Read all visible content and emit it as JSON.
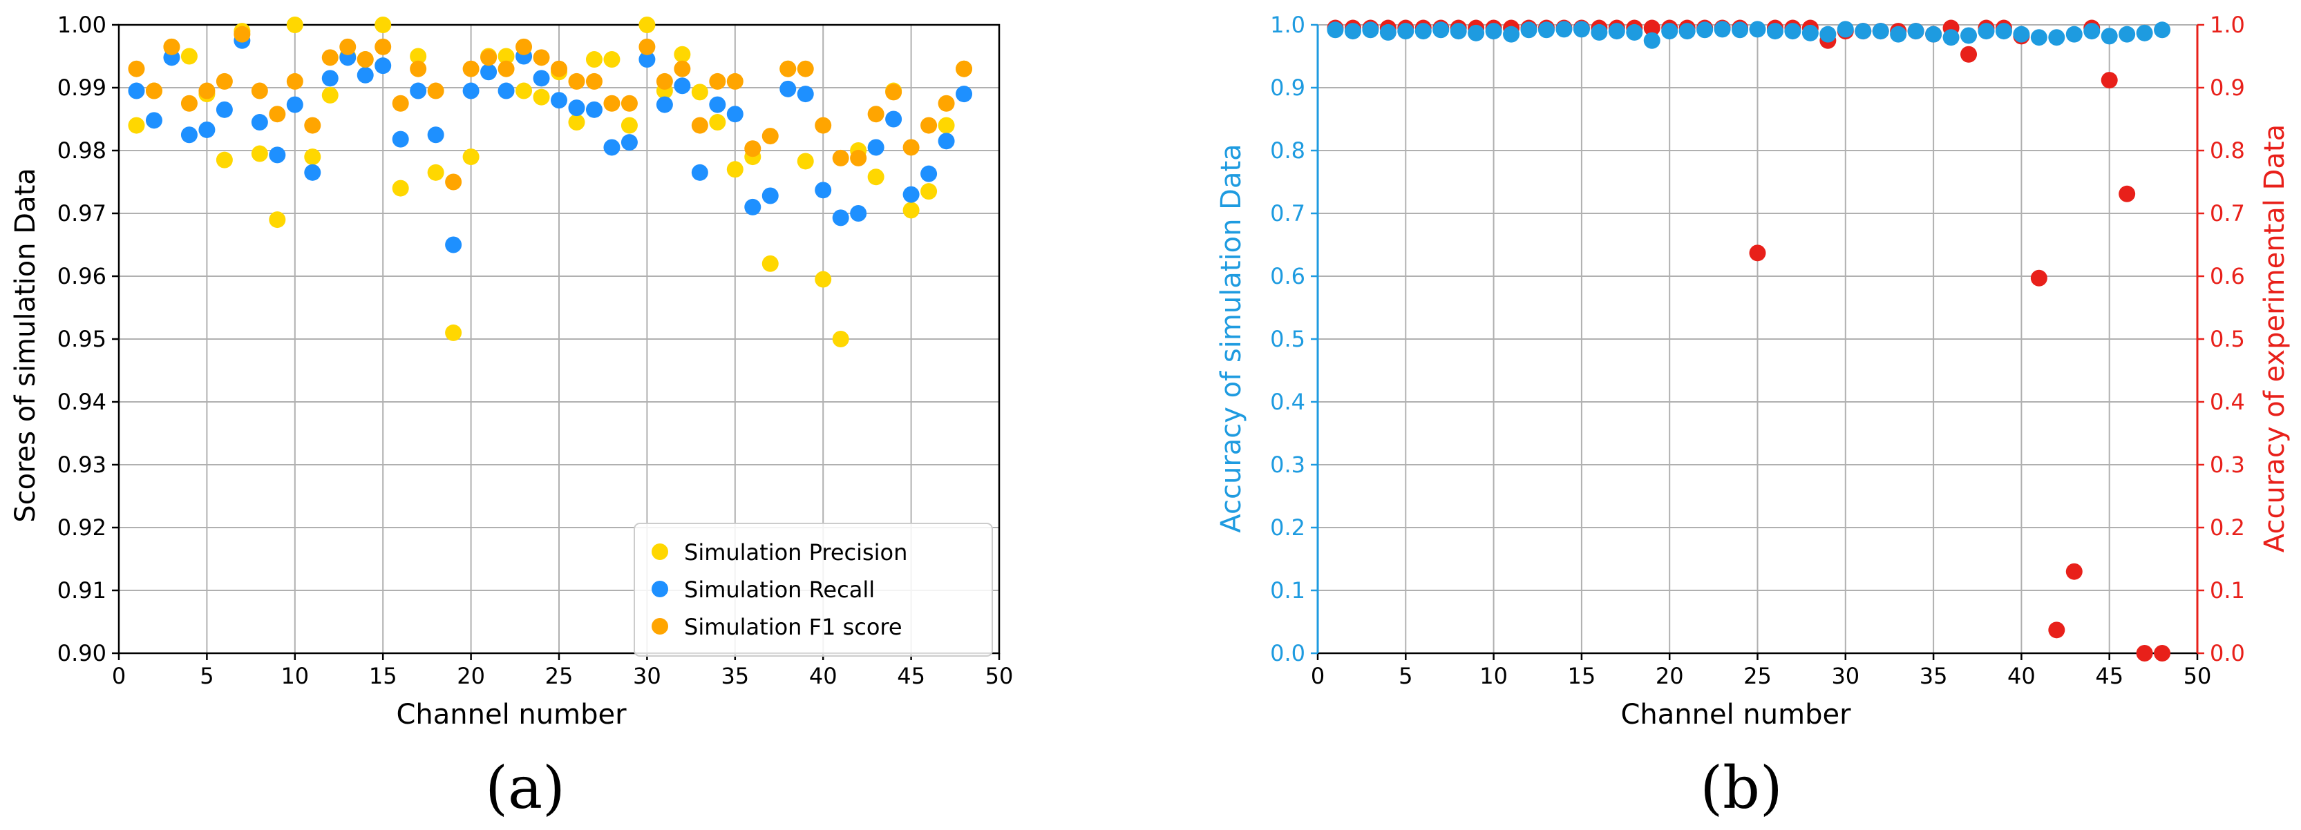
{
  "chart_data": [
    {
      "panel": "a",
      "type": "scatter",
      "caption": "(a)",
      "xlabel": "Channel number",
      "ylabel": "Scores of simulation Data",
      "xlim": [
        0,
        50
      ],
      "ylim": [
        0.9,
        1.0
      ],
      "xticks": [
        0,
        5,
        10,
        15,
        20,
        25,
        30,
        35,
        40,
        45,
        50
      ],
      "yticks": [
        0.9,
        0.91,
        0.92,
        0.93,
        0.94,
        0.95,
        0.96,
        0.97,
        0.98,
        0.99,
        1.0
      ],
      "ytick_labels": [
        "0.90",
        "0.91",
        "0.92",
        "0.93",
        "0.94",
        "0.95",
        "0.96",
        "0.97",
        "0.98",
        "0.99",
        "1.00"
      ],
      "grid": true,
      "legend_position": "lower-right",
      "x": [
        1,
        2,
        3,
        4,
        5,
        6,
        7,
        8,
        9,
        10,
        11,
        12,
        13,
        14,
        15,
        16,
        17,
        18,
        19,
        20,
        21,
        22,
        23,
        24,
        25,
        26,
        27,
        28,
        29,
        30,
        31,
        32,
        33,
        34,
        35,
        36,
        37,
        38,
        39,
        40,
        41,
        42,
        43,
        44,
        45,
        46,
        47,
        48
      ],
      "series": [
        {
          "name": "Simulation Precision",
          "color": "#FFD700",
          "values": [
            0.984,
            0.9895,
            0.9965,
            0.995,
            0.989,
            0.9785,
            0.999,
            0.9795,
            0.969,
            1.0,
            0.979,
            0.9888,
            0.995,
            0.9945,
            1.0,
            0.974,
            0.995,
            0.9765,
            0.951,
            0.979,
            0.995,
            0.995,
            0.9895,
            0.9885,
            0.9925,
            0.9845,
            0.9945,
            0.9945,
            0.984,
            1.0,
            0.9895,
            0.9953,
            0.9893,
            0.9845,
            0.977,
            0.979,
            0.962,
            0.993,
            0.9783,
            0.9595,
            0.95,
            0.98,
            0.9758,
            0.9895,
            0.9705,
            0.9735,
            0.984,
            0.993
          ]
        },
        {
          "name": "Simulation Recall",
          "color": "#1E90FF",
          "values": [
            0.9895,
            0.9848,
            0.9948,
            0.9825,
            0.9833,
            0.9865,
            0.9975,
            0.9845,
            0.9793,
            0.9873,
            0.9765,
            0.9915,
            0.9948,
            0.992,
            0.9935,
            0.9818,
            0.9895,
            0.9825,
            0.965,
            0.9895,
            0.9925,
            0.9895,
            0.995,
            0.9915,
            0.988,
            0.9868,
            0.9865,
            0.9805,
            0.9813,
            0.9945,
            0.9873,
            0.9903,
            0.9765,
            0.9873,
            0.9858,
            0.971,
            0.9728,
            0.9898,
            0.989,
            0.9737,
            0.9693,
            0.97,
            0.9805,
            0.985,
            0.973,
            0.9763,
            0.9815,
            0.989
          ]
        },
        {
          "name": "Simulation F1 score",
          "color": "#FFA500",
          "values": [
            0.993,
            0.9895,
            0.9965,
            0.9875,
            0.9895,
            0.991,
            0.9985,
            0.9895,
            0.9858,
            0.991,
            0.984,
            0.9948,
            0.9965,
            0.9945,
            0.9965,
            0.9875,
            0.993,
            0.9895,
            0.975,
            0.993,
            0.9948,
            0.993,
            0.9965,
            0.9948,
            0.993,
            0.991,
            0.991,
            0.9875,
            0.9875,
            0.9965,
            0.991,
            0.993,
            0.984,
            0.991,
            0.991,
            0.9803,
            0.9823,
            0.993,
            0.993,
            0.984,
            0.9788,
            0.9788,
            0.9858,
            0.9893,
            0.9805,
            0.984,
            0.9875,
            0.993
          ]
        }
      ]
    },
    {
      "panel": "b",
      "type": "scatter",
      "caption": "(b)",
      "xlabel": "Channel number",
      "ylabel_left": "Accuracy of simulation Data",
      "ylabel_right": "Accuracy of experimental Data",
      "xlim": [
        0,
        50
      ],
      "ylim": [
        0,
        1.0
      ],
      "xticks": [
        0,
        5,
        10,
        15,
        20,
        25,
        30,
        35,
        40,
        45,
        50
      ],
      "yticks": [
        0,
        0.1,
        0.2,
        0.3,
        0.4,
        0.5,
        0.6,
        0.7,
        0.8,
        0.9,
        1.0
      ],
      "ytick_labels": [
        "0.0",
        "0.1",
        "0.2",
        "0.3",
        "0.4",
        "0.5",
        "0.6",
        "0.7",
        "0.8",
        "0.9",
        "1.0"
      ],
      "grid": true,
      "left_axis_color": "#1E9BE0",
      "right_axis_color": "#E8201A",
      "x": [
        1,
        2,
        3,
        4,
        5,
        6,
        7,
        8,
        9,
        10,
        11,
        12,
        13,
        14,
        15,
        16,
        17,
        18,
        19,
        20,
        21,
        22,
        23,
        24,
        25,
        26,
        27,
        28,
        29,
        30,
        31,
        32,
        33,
        34,
        35,
        36,
        37,
        38,
        39,
        40,
        41,
        42,
        43,
        44,
        45,
        46,
        47,
        48
      ],
      "series": [
        {
          "name": "Accuracy of experimental Data",
          "axis": "right",
          "color": "#E8201A",
          "values": [
            0.995,
            0.995,
            0.995,
            0.995,
            0.995,
            0.995,
            0.995,
            0.995,
            0.995,
            0.995,
            0.995,
            0.995,
            0.995,
            0.995,
            0.995,
            0.995,
            0.995,
            0.995,
            0.995,
            0.995,
            0.995,
            0.995,
            0.995,
            0.995,
            0.637,
            0.995,
            0.995,
            0.995,
            0.975,
            0.99,
            0.99,
            0.99,
            0.99,
            0.99,
            0.985,
            0.995,
            0.953,
            0.995,
            0.995,
            0.982,
            0.597,
            0.037,
            0.13,
            0.995,
            0.912,
            0.731,
            0.0,
            0.0
          ]
        },
        {
          "name": "Accuracy of simulation Data",
          "axis": "left",
          "color": "#1E9BE0",
          "values": [
            0.992,
            0.99,
            0.992,
            0.988,
            0.99,
            0.99,
            0.992,
            0.99,
            0.987,
            0.99,
            0.985,
            0.992,
            0.992,
            0.993,
            0.993,
            0.988,
            0.99,
            0.988,
            0.975,
            0.99,
            0.99,
            0.992,
            0.993,
            0.992,
            0.993,
            0.99,
            0.99,
            0.987,
            0.985,
            0.993,
            0.99,
            0.99,
            0.985,
            0.99,
            0.985,
            0.98,
            0.983,
            0.99,
            0.99,
            0.985,
            0.98,
            0.98,
            0.985,
            0.99,
            0.982,
            0.985,
            0.987,
            0.992
          ]
        }
      ]
    }
  ]
}
